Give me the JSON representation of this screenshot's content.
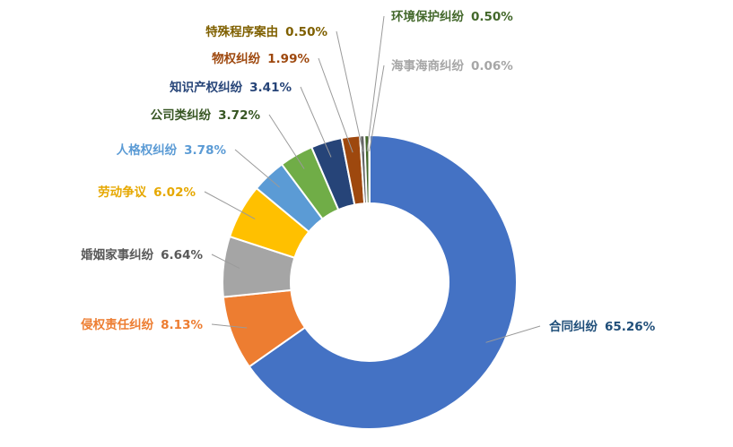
{
  "chart_data": {
    "type": "pie",
    "style": "donut",
    "legend": "none",
    "title": "",
    "slices": [
      {
        "name": "合同纠纷",
        "value": 65.26,
        "label": "65.26%",
        "color": "#4472c4",
        "label_color": "#1f4e79"
      },
      {
        "name": "侵权责任纠纷",
        "value": 8.13,
        "label": "8.13%",
        "color": "#ed7d31",
        "label_color": "#ed7d31"
      },
      {
        "name": "婚姻家事纠纷",
        "value": 6.64,
        "label": "6.64%",
        "color": "#a5a5a5",
        "label_color": "#595959"
      },
      {
        "name": "劳动争议",
        "value": 6.02,
        "label": "6.02%",
        "color": "#ffc000",
        "label_color": "#e6a800"
      },
      {
        "name": "人格权纠纷",
        "value": 3.78,
        "label": "3.78%",
        "color": "#5b9bd5",
        "label_color": "#5b9bd5"
      },
      {
        "name": "公司类纠纷",
        "value": 3.72,
        "label": "3.72%",
        "color": "#70ad47",
        "label_color": "#375623"
      },
      {
        "name": "知识产权纠纷",
        "value": 3.41,
        "label": "3.41%",
        "color": "#264478",
        "label_color": "#264478"
      },
      {
        "name": "物权纠纷",
        "value": 1.99,
        "label": "1.99%",
        "color": "#9e480e",
        "label_color": "#9e480e"
      },
      {
        "name": "特殊程序案由",
        "value": 0.5,
        "label": "0.50%",
        "color": "#636363",
        "label_color": "#7f6000"
      },
      {
        "name": "环境保护纠纷",
        "value": 0.5,
        "label": "0.50%",
        "color": "#43682b",
        "label_color": "#43682b"
      },
      {
        "name": "海事海商纠纷",
        "value": 0.06,
        "label": "0.06%",
        "color": "#bfbfbf",
        "label_color": "#a6a6a6"
      }
    ]
  }
}
